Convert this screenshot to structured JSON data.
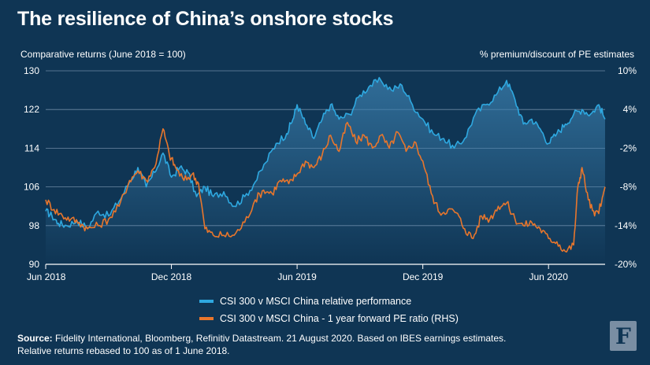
{
  "title": "The resilience of China’s onshore stocks",
  "chart_data": {
    "type": "line",
    "left_axis_title": "Comparative returns (June 2018 = 100)",
    "right_axis_title": "% premium/discount of PE estimates",
    "left_ticks": [
      "130",
      "122",
      "114",
      "106",
      "98",
      "90"
    ],
    "left_ylim": [
      90,
      130
    ],
    "right_ticks": [
      "10%",
      "4%",
      "-2%",
      "-8%",
      "-14%",
      "-20%"
    ],
    "right_ylim": [
      -20,
      10
    ],
    "x_ticks": [
      {
        "label": "Jun 2018",
        "t": 0
      },
      {
        "label": "Dec 2018",
        "t": 6
      },
      {
        "label": "Jun 2019",
        "t": 12
      },
      {
        "label": "Dec 2019",
        "t": 18
      },
      {
        "label": "Jun 2020",
        "t": 24
      }
    ],
    "x_range_months": [
      0,
      26.7
    ],
    "series": [
      {
        "name": "CSI 300 v MSCI China relative performance",
        "axis": "left",
        "color": "#2ea8e0",
        "points": [
          [
            0,
            101
          ],
          [
            0.3,
            100
          ],
          [
            0.6,
            98.5
          ],
          [
            1,
            98
          ],
          [
            1.5,
            99
          ],
          [
            2,
            97.5
          ],
          [
            2.5,
            101
          ],
          [
            3,
            100
          ],
          [
            3.5,
            103
          ],
          [
            4,
            107
          ],
          [
            4.4,
            110
          ],
          [
            4.8,
            106
          ],
          [
            5.2,
            109
          ],
          [
            5.6,
            113
          ],
          [
            6,
            108
          ],
          [
            6.4,
            110
          ],
          [
            6.8,
            109
          ],
          [
            7.2,
            104
          ],
          [
            7.6,
            106
          ],
          [
            8,
            104
          ],
          [
            8.5,
            105
          ],
          [
            9,
            102
          ],
          [
            9.5,
            104
          ],
          [
            10,
            107
          ],
          [
            10.5,
            111
          ],
          [
            11,
            115
          ],
          [
            11.5,
            117
          ],
          [
            11.8,
            120
          ],
          [
            12,
            123
          ],
          [
            12.4,
            119
          ],
          [
            12.8,
            116
          ],
          [
            13.2,
            120
          ],
          [
            13.6,
            123
          ],
          [
            14,
            120
          ],
          [
            14.5,
            121
          ],
          [
            15,
            125
          ],
          [
            15.5,
            127
          ],
          [
            16,
            128
          ],
          [
            16.5,
            126
          ],
          [
            17,
            127
          ],
          [
            17.5,
            123
          ],
          [
            18,
            120
          ],
          [
            18.5,
            117
          ],
          [
            19,
            116
          ],
          [
            19.5,
            114
          ],
          [
            20,
            116
          ],
          [
            20.5,
            121
          ],
          [
            21,
            123
          ],
          [
            21.5,
            125
          ],
          [
            22,
            128
          ],
          [
            22.4,
            124
          ],
          [
            22.8,
            119
          ],
          [
            23.2,
            120
          ],
          [
            23.6,
            118
          ],
          [
            24,
            115
          ],
          [
            24.4,
            117
          ],
          [
            24.8,
            119
          ],
          [
            25.2,
            121
          ],
          [
            25.6,
            122
          ],
          [
            26,
            121
          ],
          [
            26.4,
            123
          ],
          [
            26.7,
            120
          ]
        ]
      },
      {
        "name": "CSI 300 v MSCI China - 1 year forward PE ratio (RHS)",
        "axis": "right",
        "color": "#e8762c",
        "points": [
          [
            0,
            -10
          ],
          [
            0.4,
            -11.5
          ],
          [
            0.8,
            -12.5
          ],
          [
            1.2,
            -13
          ],
          [
            1.6,
            -13.5
          ],
          [
            2,
            -14.5
          ],
          [
            2.5,
            -14
          ],
          [
            3,
            -13
          ],
          [
            3.5,
            -11
          ],
          [
            4,
            -7
          ],
          [
            4.4,
            -5.5
          ],
          [
            4.8,
            -7
          ],
          [
            5.2,
            -5
          ],
          [
            5.6,
            1
          ],
          [
            5.9,
            -3
          ],
          [
            6.2,
            -5
          ],
          [
            6.6,
            -7
          ],
          [
            7,
            -6
          ],
          [
            7.3,
            -7.5
          ],
          [
            7.6,
            -14.5
          ],
          [
            8,
            -15.5
          ],
          [
            8.5,
            -15.5
          ],
          [
            9,
            -15.5
          ],
          [
            9.5,
            -13.5
          ],
          [
            10,
            -10
          ],
          [
            10.4,
            -8.5
          ],
          [
            10.8,
            -9
          ],
          [
            11.2,
            -7
          ],
          [
            11.6,
            -7.5
          ],
          [
            12,
            -6
          ],
          [
            12.4,
            -4
          ],
          [
            12.8,
            -5
          ],
          [
            13.2,
            -3
          ],
          [
            13.6,
            0
          ],
          [
            14,
            -2.5
          ],
          [
            14.4,
            2
          ],
          [
            14.8,
            -1
          ],
          [
            15.2,
            0
          ],
          [
            15.6,
            -2
          ],
          [
            16,
            0
          ],
          [
            16.4,
            -2
          ],
          [
            16.8,
            0.5
          ],
          [
            17.2,
            -2.5
          ],
          [
            17.6,
            -1
          ],
          [
            18,
            -4
          ],
          [
            18.4,
            -9
          ],
          [
            18.8,
            -12
          ],
          [
            19.2,
            -11.5
          ],
          [
            19.6,
            -12
          ],
          [
            20,
            -14.5
          ],
          [
            20.4,
            -16
          ],
          [
            20.8,
            -12.5
          ],
          [
            21.2,
            -13
          ],
          [
            21.6,
            -11
          ],
          [
            22,
            -10.5
          ],
          [
            22.4,
            -13
          ],
          [
            22.8,
            -14
          ],
          [
            23.2,
            -13.5
          ],
          [
            23.6,
            -14.5
          ],
          [
            24,
            -16
          ],
          [
            24.4,
            -16.5
          ],
          [
            24.8,
            -18
          ],
          [
            25.2,
            -17
          ],
          [
            25.4,
            -8
          ],
          [
            25.6,
            -5
          ],
          [
            25.9,
            -10
          ],
          [
            26.2,
            -12.5
          ],
          [
            26.5,
            -11
          ],
          [
            26.7,
            -8
          ]
        ]
      }
    ]
  },
  "legend": {
    "items": [
      {
        "label": "CSI 300 v MSCI China relative performance",
        "color": "#2ea8e0"
      },
      {
        "label": "CSI 300 v MSCI China - 1 year forward PE ratio (RHS)",
        "color": "#e8762c"
      }
    ]
  },
  "source": {
    "label": "Source:",
    "text": " Fidelity International, Bloomberg, Refinitiv Datastream. 21 August 2020. Based on IBES earnings estimates.",
    "line2": "Relative returns rebased to 100 as of 1 June 2018."
  },
  "logo": {
    "glyph": "F"
  },
  "colors": {
    "background": "#0f3554",
    "blue": "#2ea8e0",
    "orange": "#e8762c"
  }
}
